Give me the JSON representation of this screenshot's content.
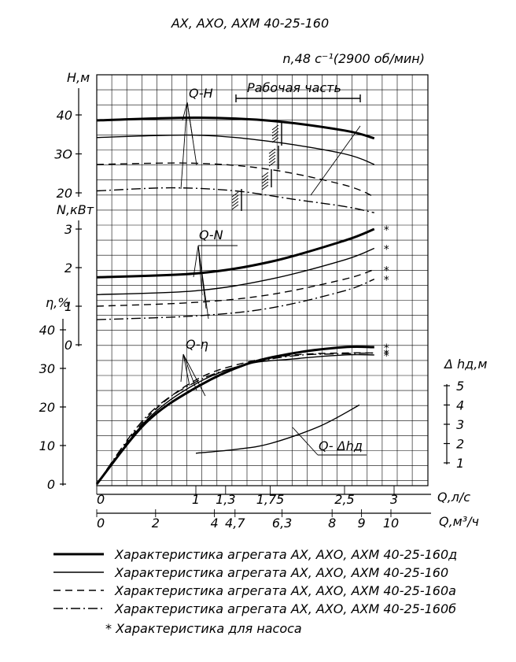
{
  "title": "АХ, АХО, АХМ 40-25-160",
  "speed": "n,48 с⁻¹(2900 об/мин)",
  "working_zone_label": "Рабочая часть",
  "chart_data": {
    "type": "line",
    "x_axis_q_ls": {
      "label": "Q,л/с",
      "ticks": [
        "0",
        "1",
        "1,3",
        "1,75",
        "2,5",
        "3"
      ],
      "range": [
        0,
        3
      ]
    },
    "x_axis_q_m3h": {
      "label": "Q,м³/ч",
      "ticks": [
        "0",
        "2",
        "4",
        "4,7",
        "6,3",
        "8",
        "9",
        "10"
      ],
      "range": [
        0,
        10.8
      ]
    },
    "axes": {
      "head": {
        "label": "Н,м",
        "ticks": [
          "20",
          "3Ο",
          "40"
        ],
        "range": [
          20,
          40
        ]
      },
      "power": {
        "label": "N,кВт",
        "ticks": [
          "0",
          "1",
          "2",
          "3"
        ],
        "range": [
          0,
          3
        ]
      },
      "efficiency": {
        "label": "η,%",
        "ticks": [
          "0",
          "10",
          "20",
          "30",
          "40"
        ],
        "range": [
          0,
          40
        ]
      },
      "npsh": {
        "label": "Δ hд,м",
        "ticks": [
          "1",
          "2",
          "3",
          "4",
          "5"
        ],
        "range": [
          1,
          5
        ]
      }
    },
    "curve_labels": {
      "qh": "Q-Н",
      "qn": "Q-N",
      "qeta": "Q-η",
      "qnpsh": "Q- Δhд"
    },
    "pump_marker": "*",
    "series": [
      {
        "name": "Характеристика агрегата АХ, АХО, АХМ 40-25-160д",
        "style": "thick",
        "head": [
          [
            0,
            38.6
          ],
          [
            1,
            39.3
          ],
          [
            1.75,
            38.5
          ],
          [
            2.5,
            36
          ],
          [
            2.8,
            34
          ]
        ],
        "power": [
          [
            0,
            1.75
          ],
          [
            1,
            1.85
          ],
          [
            1.75,
            2.15
          ],
          [
            2.5,
            2.7
          ],
          [
            2.8,
            3.0
          ]
        ],
        "efficiency": [
          [
            0,
            0
          ],
          [
            0.5,
            16
          ],
          [
            1,
            25
          ],
          [
            1.5,
            31
          ],
          [
            2,
            34
          ],
          [
            2.5,
            35.5
          ],
          [
            2.8,
            35.5
          ]
        ]
      },
      {
        "name": "Характеристика агрегата АХ, АХО, АХМ 40-25-160",
        "style": "solid",
        "head": [
          [
            0,
            34.2
          ],
          [
            1,
            34.8
          ],
          [
            1.75,
            33.2
          ],
          [
            2.5,
            30
          ],
          [
            2.8,
            27.3
          ]
        ],
        "power": [
          [
            0,
            1.3
          ],
          [
            1,
            1.4
          ],
          [
            1.75,
            1.7
          ],
          [
            2.5,
            2.2
          ],
          [
            2.8,
            2.5
          ]
        ],
        "efficiency": [
          [
            0,
            0
          ],
          [
            0.5,
            16.5
          ],
          [
            1,
            26
          ],
          [
            1.5,
            31
          ],
          [
            2,
            32.5
          ],
          [
            2.5,
            33.5
          ],
          [
            2.8,
            33.5
          ]
        ]
      },
      {
        "name": "Характеристика агрегата АХ, АХО, АХМ 40-25-160а",
        "style": "dashed",
        "head": [
          [
            0,
            27.3
          ],
          [
            1,
            27.6
          ],
          [
            1.75,
            26
          ],
          [
            2.5,
            22
          ],
          [
            2.8,
            19
          ]
        ],
        "power": [
          [
            0,
            1.0
          ],
          [
            1,
            1.1
          ],
          [
            1.75,
            1.3
          ],
          [
            2.5,
            1.7
          ],
          [
            2.8,
            1.95
          ]
        ],
        "efficiency": [
          [
            0,
            0
          ],
          [
            0.5,
            17
          ],
          [
            1,
            27
          ],
          [
            1.5,
            31.5
          ],
          [
            2,
            33.5
          ],
          [
            2.5,
            34
          ],
          [
            2.8,
            34
          ]
        ]
      },
      {
        "name": "Характеристика агрегата АХ, АХО, АХМ 40-25-160б",
        "style": "dash-dot",
        "head": [
          [
            0,
            20.5
          ],
          [
            0.75,
            21.3
          ],
          [
            1.4,
            20.5
          ],
          [
            2,
            18.3
          ],
          [
            2.5,
            16.5
          ],
          [
            2.8,
            14.9
          ]
        ],
        "power": [
          [
            0,
            0.65
          ],
          [
            1,
            0.75
          ],
          [
            1.75,
            0.95
          ],
          [
            2.5,
            1.4
          ],
          [
            2.8,
            1.7
          ]
        ],
        "efficiency": [
          [
            0,
            0
          ],
          [
            0.5,
            17.5
          ],
          [
            1,
            26.5
          ],
          [
            1.5,
            31
          ],
          [
            2,
            33.3
          ],
          [
            2.5,
            33.8
          ],
          [
            2.8,
            34
          ]
        ]
      },
      {
        "name": "Q- Δhд",
        "style": "solid",
        "npsh": [
          [
            1.0,
            1.5
          ],
          [
            1.4,
            1.7
          ],
          [
            1.75,
            2.0
          ],
          [
            2.25,
            2.9
          ],
          [
            2.65,
            4.0
          ]
        ]
      }
    ],
    "grid": true
  },
  "legend": {
    "items": [
      {
        "style": "thick",
        "label": "Характеристика агрегата АХ, АХО, АХМ 40-25-160д"
      },
      {
        "style": "solid",
        "label": "Характеристика агрегата АХ, АХО, АХМ 40-25-160"
      },
      {
        "style": "dashed",
        "label": "Характеристика агрегата АХ, АХО, АХМ 40-25-160а"
      },
      {
        "style": "dash-dot",
        "label": "Характеристика агрегата АХ, АХО, АХМ 40-25-160б"
      }
    ],
    "footnote": "* Характеристика для насоса"
  }
}
